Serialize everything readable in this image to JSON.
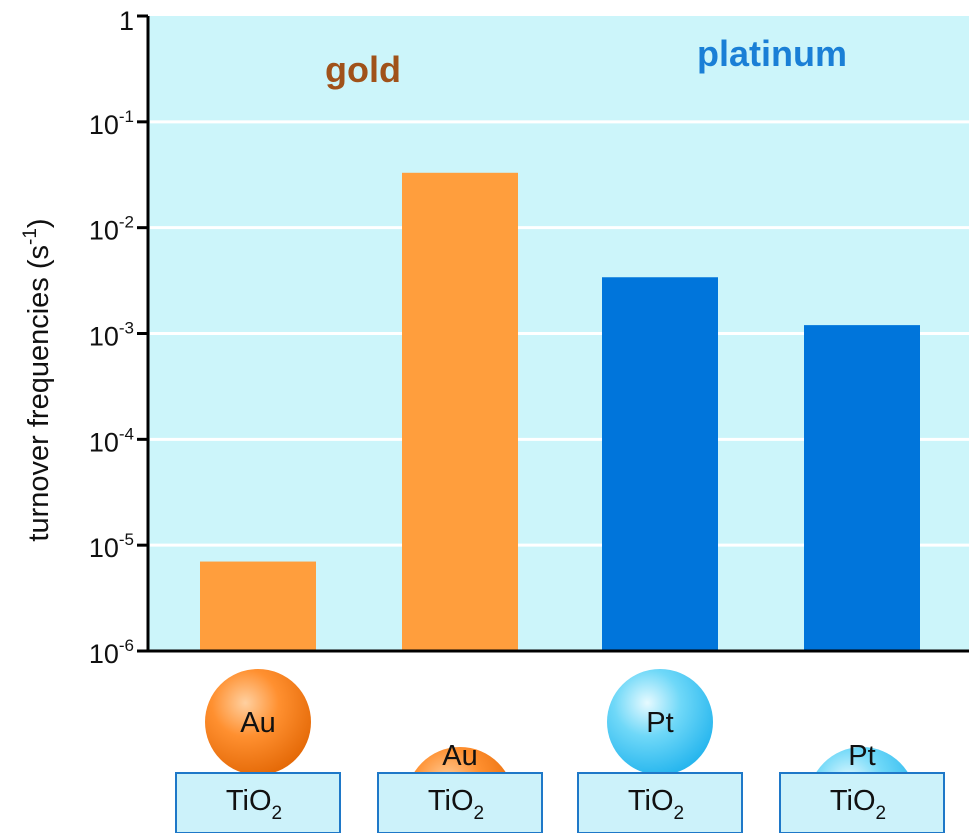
{
  "chart_data": {
    "type": "bar",
    "ylabel": {
      "text": "turnover frequencies (s",
      "sup": "-1",
      "tail": ")"
    },
    "yscale": "log",
    "ylim": [
      1e-06,
      1
    ],
    "grid": true,
    "yticks": [
      {
        "value": 1,
        "base": "1",
        "exp": ""
      },
      {
        "value": 0.1,
        "base": "10",
        "exp": "-1"
      },
      {
        "value": 0.01,
        "base": "10",
        "exp": "-2"
      },
      {
        "value": 0.001,
        "base": "10",
        "exp": "-3"
      },
      {
        "value": 0.0001,
        "base": "10",
        "exp": "-4"
      },
      {
        "value": 1e-05,
        "base": "10",
        "exp": "-5"
      },
      {
        "value": 1e-06,
        "base": "10",
        "exp": "-6"
      }
    ],
    "groups": [
      {
        "label": "gold",
        "color": "#A0521A"
      },
      {
        "label": "platinum",
        "color": "#1A7FD6"
      }
    ],
    "bars": [
      {
        "group": "gold",
        "value": 7e-06,
        "color": "#FF9E3D",
        "particle": "Au",
        "support_base": "TiO",
        "support_sub": "2",
        "particle_style": "large"
      },
      {
        "group": "gold",
        "value": 0.033,
        "color": "#FF9E3D",
        "particle": "Au",
        "support_base": "TiO",
        "support_sub": "2",
        "particle_style": "flat"
      },
      {
        "group": "platinum",
        "value": 0.0034,
        "color": "#0075DB",
        "particle": "Pt",
        "support_base": "TiO",
        "support_sub": "2",
        "particle_style": "large"
      },
      {
        "group": "platinum",
        "value": 0.0012,
        "color": "#0075DB",
        "particle": "Pt",
        "support_base": "TiO",
        "support_sub": "2",
        "particle_style": "flat"
      }
    ],
    "colors": {
      "plot_background": "#CCF5FA",
      "gridline": "#FFFFFF",
      "axis": "#000000",
      "au_particle": "#F07A14",
      "pt_particle": "#3CC8F5",
      "support_fill": "#CCF2FA",
      "support_border": "#1E78C8"
    }
  }
}
